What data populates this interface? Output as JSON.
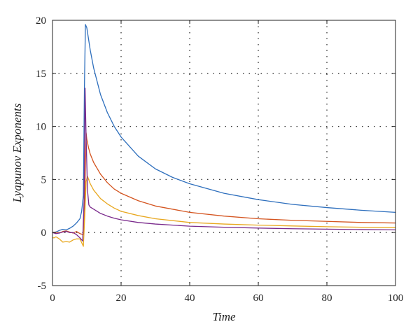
{
  "chart_data": {
    "type": "line",
    "title": "",
    "xlabel": "Time",
    "ylabel": "Lyapunov Exponents",
    "xlim": [
      0,
      100
    ],
    "ylim": [
      -5,
      20
    ],
    "xticks": [
      0,
      20,
      40,
      60,
      80,
      100
    ],
    "yticks": [
      -5,
      0,
      5,
      10,
      15,
      20
    ],
    "xtick_labels": [
      "0",
      "20",
      "40",
      "60",
      "80",
      "100"
    ],
    "ytick_labels": [
      "-5",
      "0",
      "5",
      "10",
      "15",
      "20"
    ],
    "grid": true,
    "legend": "none",
    "series": [
      {
        "color": "#2e6fbd",
        "x": [
          0,
          1,
          2,
          3,
          4,
          5,
          6,
          7,
          8,
          8.5,
          9,
          9.3,
          9.6,
          10,
          11,
          12,
          14,
          16,
          18,
          20,
          25,
          30,
          35,
          40,
          50,
          60,
          70,
          80,
          90,
          100
        ],
        "y": [
          0,
          0.05,
          0.2,
          0.3,
          0.25,
          0.4,
          0.6,
          0.9,
          1.3,
          2.0,
          3.5,
          13.5,
          19.6,
          19.3,
          17.2,
          15.5,
          13.0,
          11.3,
          10.0,
          9.0,
          7.2,
          6.0,
          5.2,
          4.6,
          3.7,
          3.1,
          2.65,
          2.35,
          2.1,
          1.9
        ]
      },
      {
        "color": "#d4541f",
        "x": [
          0,
          1,
          2,
          3,
          4,
          5,
          6,
          7,
          8,
          9,
          9.5,
          9.8,
          10,
          10.5,
          11,
          12,
          14,
          16,
          18,
          20,
          25,
          30,
          40,
          50,
          60,
          70,
          80,
          90,
          100
        ],
        "y": [
          0,
          0.02,
          -0.05,
          0.1,
          0.15,
          0.05,
          -0.05,
          0.1,
          -0.1,
          -0.2,
          4.5,
          9.4,
          8.8,
          8.0,
          7.4,
          6.6,
          5.5,
          4.7,
          4.1,
          3.7,
          3.0,
          2.5,
          1.9,
          1.55,
          1.3,
          1.15,
          1.05,
          0.95,
          0.9
        ]
      },
      {
        "color": "#e8a820",
        "x": [
          0,
          0.5,
          1,
          2,
          3,
          4,
          5,
          6,
          7,
          8,
          9,
          9.4,
          9.8,
          10.2,
          11,
          12,
          14,
          16,
          18,
          20,
          25,
          30,
          40,
          50,
          60,
          70,
          80,
          90,
          100
        ],
        "y": [
          -0.5,
          -0.5,
          -0.4,
          -0.6,
          -0.9,
          -0.85,
          -0.9,
          -0.7,
          -0.6,
          -0.6,
          -1.3,
          1.5,
          4.8,
          5.3,
          4.6,
          4.0,
          3.2,
          2.7,
          2.3,
          2.0,
          1.6,
          1.3,
          0.95,
          0.8,
          0.7,
          0.62,
          0.55,
          0.5,
          0.48
        ]
      },
      {
        "color": "#7a2a8c",
        "x": [
          0,
          1,
          2,
          3,
          4,
          5,
          6,
          7,
          8,
          8.8,
          9.2,
          9.5,
          9.8,
          10.2,
          10.6,
          11,
          12,
          14,
          16,
          18,
          20,
          25,
          30,
          40,
          50,
          60,
          70,
          80,
          90,
          100
        ],
        "y": [
          0,
          -0.1,
          -0.05,
          0.05,
          0.1,
          0,
          0,
          -0.2,
          -0.5,
          -0.8,
          3.0,
          13.6,
          9.0,
          4.0,
          2.6,
          2.4,
          2.2,
          1.8,
          1.55,
          1.35,
          1.2,
          0.95,
          0.8,
          0.6,
          0.5,
          0.42,
          0.36,
          0.32,
          0.28,
          0.25
        ]
      }
    ]
  }
}
